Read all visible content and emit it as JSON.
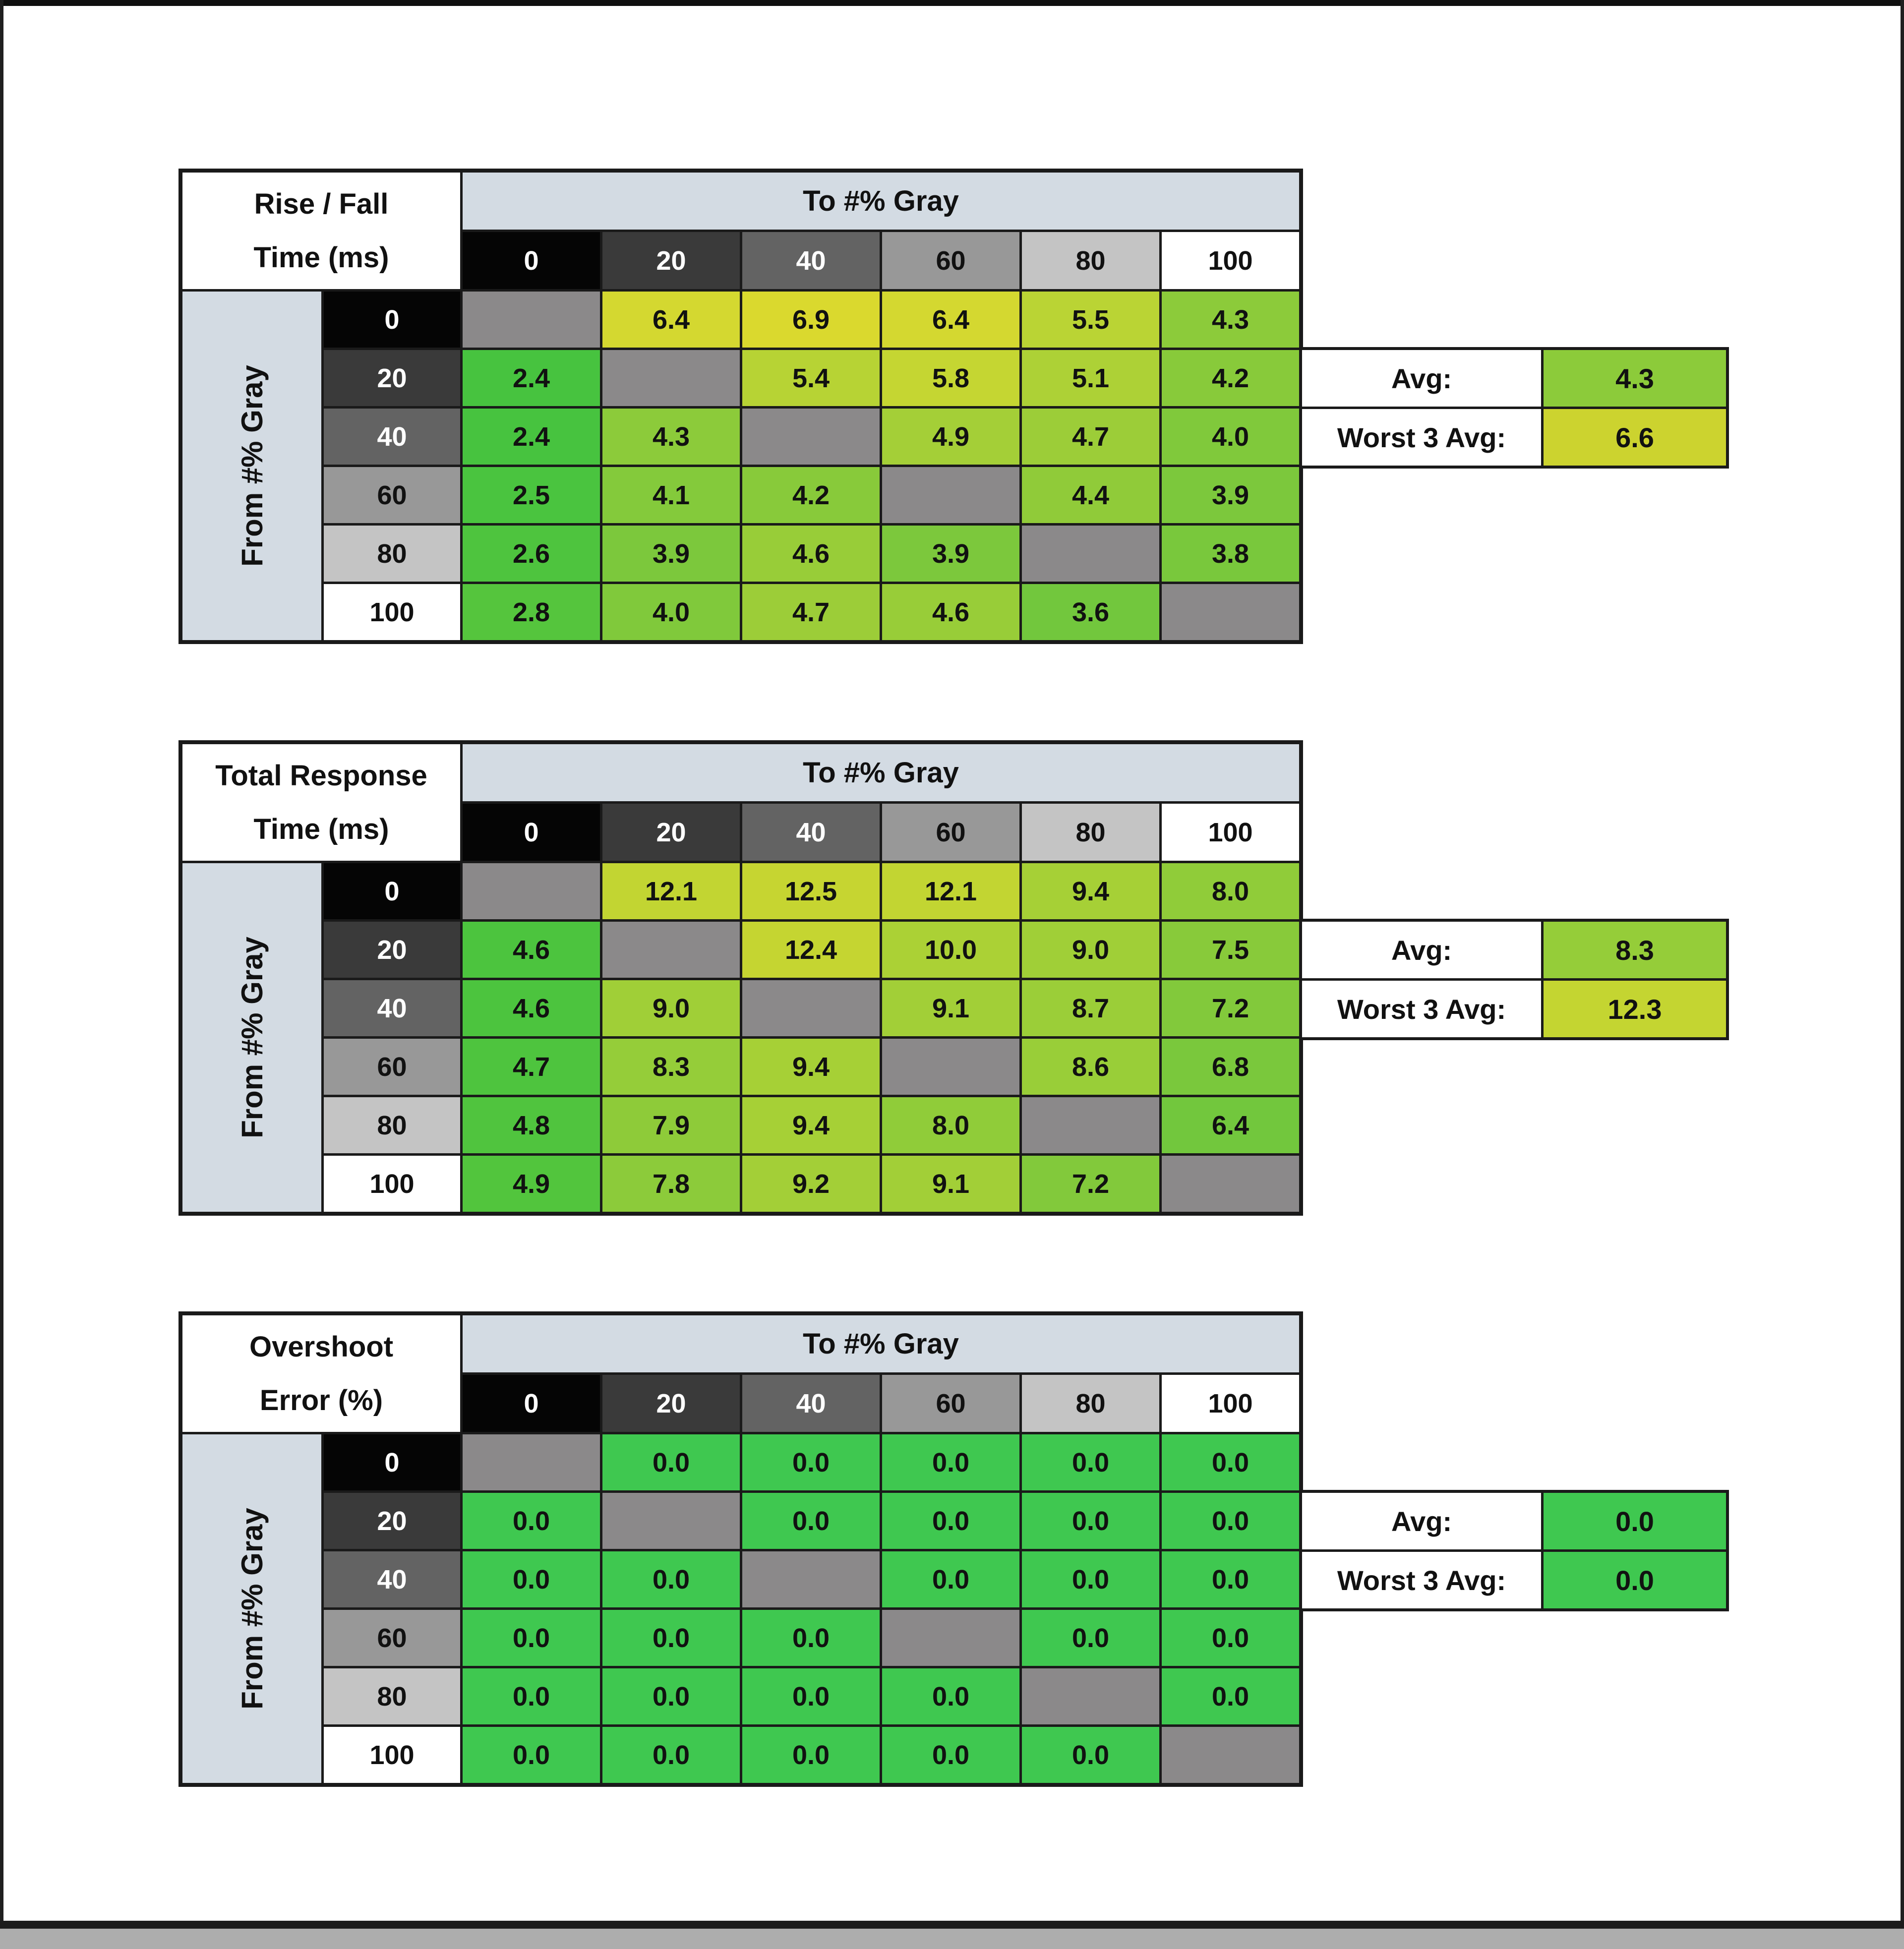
{
  "common": {
    "to_label": "To #% Gray",
    "from_label": "From #% Gray",
    "col_headers": [
      "0",
      "20",
      "40",
      "60",
      "80",
      "100"
    ],
    "row_headers": [
      "0",
      "20",
      "40",
      "60",
      "80",
      "100"
    ],
    "avg_label": "Avg:",
    "worst_label": "Worst 3 Avg:",
    "header_bg": "#d3dbe3",
    "grid_line_color": "#1a1a1a",
    "diagonal_bg": "#8b898a",
    "swatch_bgs": [
      "#050505",
      "#3a3a3a",
      "#636363",
      "#989898",
      "#c4c4c4",
      "#ffffff"
    ],
    "swatch_text": [
      "#ffffff",
      "#ffffff",
      "#ffffff",
      "#111111",
      "#111111",
      "#111111"
    ]
  },
  "tables": [
    {
      "title_line1": "Rise / Fall",
      "title_line2": "Time (ms)",
      "avg": {
        "value": "4.3",
        "color": "#8ccb3a"
      },
      "worst3": {
        "value": "6.6",
        "color": "#ccd32f"
      },
      "rows": [
        [
          [
            "",
            "#8b898a"
          ],
          [
            "6.4",
            "#d4d830"
          ],
          [
            "6.9",
            "#dad92e"
          ],
          [
            "6.4",
            "#d4d830"
          ],
          [
            "5.5",
            "#bad434"
          ],
          [
            "4.3",
            "#8ccb3a"
          ]
        ],
        [
          [
            "2.4",
            "#47c33f"
          ],
          [
            "",
            "#8b898a"
          ],
          [
            "5.4",
            "#b7d334"
          ],
          [
            "5.8",
            "#c5d632"
          ],
          [
            "5.1",
            "#add136"
          ],
          [
            "4.2",
            "#88ca3a"
          ]
        ],
        [
          [
            "2.4",
            "#47c33f"
          ],
          [
            "4.3",
            "#8ccb3a"
          ],
          [
            "",
            "#8b898a"
          ],
          [
            "4.9",
            "#a4cf37"
          ],
          [
            "4.7",
            "#9ccd38"
          ],
          [
            "4.0",
            "#80c93b"
          ]
        ],
        [
          [
            "2.5",
            "#4ac43f"
          ],
          [
            "4.1",
            "#84ca3b"
          ],
          [
            "4.2",
            "#88ca3a"
          ],
          [
            "",
            "#8b898a"
          ],
          [
            "4.4",
            "#90cb39"
          ],
          [
            "3.9",
            "#7cc83c"
          ]
        ],
        [
          [
            "2.6",
            "#4ec43e"
          ],
          [
            "3.9",
            "#7cc83c"
          ],
          [
            "4.6",
            "#98cd38"
          ],
          [
            "3.9",
            "#7cc83c"
          ],
          [
            "",
            "#8b898a"
          ],
          [
            "3.8",
            "#79c83c"
          ]
        ],
        [
          [
            "2.8",
            "#55c53d"
          ],
          [
            "4.0",
            "#80c93b"
          ],
          [
            "4.7",
            "#9ccd38"
          ],
          [
            "4.6",
            "#98cd38"
          ],
          [
            "3.6",
            "#72c73d"
          ],
          [
            "",
            "#8b898a"
          ]
        ]
      ]
    },
    {
      "title_line1": "Total Response",
      "title_line2": "Time (ms)",
      "avg": {
        "value": "8.3",
        "color": "#95cd39"
      },
      "worst3": {
        "value": "12.3",
        "color": "#c4d531"
      },
      "rows": [
        [
          [
            "",
            "#8b898a"
          ],
          [
            "12.1",
            "#c2d532"
          ],
          [
            "12.5",
            "#c6d531"
          ],
          [
            "12.1",
            "#c2d532"
          ],
          [
            "9.4",
            "#a6d036"
          ],
          [
            "8.0",
            "#90cc39"
          ]
        ],
        [
          [
            "4.6",
            "#4cc43e"
          ],
          [
            "",
            "#8b898a"
          ],
          [
            "12.4",
            "#c5d531"
          ],
          [
            "10.0",
            "#abd135"
          ],
          [
            "9.0",
            "#a0cf37"
          ],
          [
            "7.5",
            "#88ca3a"
          ]
        ],
        [
          [
            "4.6",
            "#4cc43e"
          ],
          [
            "9.0",
            "#a0cf37"
          ],
          [
            "",
            "#8b898a"
          ],
          [
            "9.1",
            "#a2cf37"
          ],
          [
            "8.7",
            "#9bce38"
          ],
          [
            "7.2",
            "#82c93b"
          ]
        ],
        [
          [
            "4.7",
            "#4ec43e"
          ],
          [
            "8.3",
            "#95cd39"
          ],
          [
            "9.4",
            "#a6d036"
          ],
          [
            "",
            "#8b898a"
          ],
          [
            "8.6",
            "#99ce38"
          ],
          [
            "6.8",
            "#7ac83c"
          ]
        ],
        [
          [
            "4.8",
            "#50c43e"
          ],
          [
            "7.9",
            "#8ecb39"
          ],
          [
            "9.4",
            "#a6d036"
          ],
          [
            "8.0",
            "#90cc39"
          ],
          [
            "",
            "#8b898a"
          ],
          [
            "6.4",
            "#72c73d"
          ]
        ],
        [
          [
            "4.9",
            "#52c53d"
          ],
          [
            "7.8",
            "#8ccb3a"
          ],
          [
            "9.2",
            "#a3cf37"
          ],
          [
            "9.1",
            "#a2cf37"
          ],
          [
            "7.2",
            "#82c93b"
          ],
          [
            "",
            "#8b898a"
          ]
        ]
      ]
    },
    {
      "title_line1": "Overshoot",
      "title_line2": "Error (%)",
      "avg": {
        "value": "0.0",
        "color": "#3fc850"
      },
      "worst3": {
        "value": "0.0",
        "color": "#3fc850"
      },
      "rows": [
        [
          [
            "",
            "#8b898a"
          ],
          [
            "0.0",
            "#3fc850"
          ],
          [
            "0.0",
            "#3fc850"
          ],
          [
            "0.0",
            "#3fc850"
          ],
          [
            "0.0",
            "#3fc850"
          ],
          [
            "0.0",
            "#3fc850"
          ]
        ],
        [
          [
            "0.0",
            "#3fc850"
          ],
          [
            "",
            "#8b898a"
          ],
          [
            "0.0",
            "#3fc850"
          ],
          [
            "0.0",
            "#3fc850"
          ],
          [
            "0.0",
            "#3fc850"
          ],
          [
            "0.0",
            "#3fc850"
          ]
        ],
        [
          [
            "0.0",
            "#3fc850"
          ],
          [
            "0.0",
            "#3fc850"
          ],
          [
            "",
            "#8b898a"
          ],
          [
            "0.0",
            "#3fc850"
          ],
          [
            "0.0",
            "#3fc850"
          ],
          [
            "0.0",
            "#3fc850"
          ]
        ],
        [
          [
            "0.0",
            "#3fc850"
          ],
          [
            "0.0",
            "#3fc850"
          ],
          [
            "0.0",
            "#3fc850"
          ],
          [
            "",
            "#8b898a"
          ],
          [
            "0.0",
            "#3fc850"
          ],
          [
            "0.0",
            "#3fc850"
          ]
        ],
        [
          [
            "0.0",
            "#3fc850"
          ],
          [
            "0.0",
            "#3fc850"
          ],
          [
            "0.0",
            "#3fc850"
          ],
          [
            "0.0",
            "#3fc850"
          ],
          [
            "",
            "#8b898a"
          ],
          [
            "0.0",
            "#3fc850"
          ]
        ],
        [
          [
            "0.0",
            "#3fc850"
          ],
          [
            "0.0",
            "#3fc850"
          ],
          [
            "0.0",
            "#3fc850"
          ],
          [
            "0.0",
            "#3fc850"
          ],
          [
            "0.0",
            "#3fc850"
          ],
          [
            "",
            "#8b898a"
          ]
        ]
      ]
    }
  ]
}
